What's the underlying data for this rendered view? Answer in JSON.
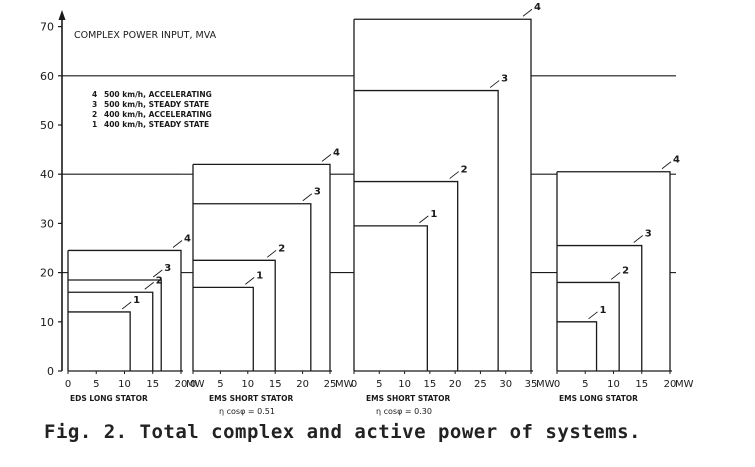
{
  "figure": {
    "caption": "Fig. 2.  Total complex and active power of systems."
  },
  "chart_data": {
    "type": "bar",
    "title": "COMPLEX POWER INPUT, MVA",
    "ylabel": "",
    "ylim": [
      0,
      75
    ],
    "yticks": [
      0,
      10,
      20,
      30,
      40,
      50,
      60,
      70
    ],
    "reference_lines": [
      20,
      40,
      60
    ],
    "legend": {
      "placement": "top-left",
      "entries": [
        {
          "id": "4",
          "label": "500 km/h, ACCELERATING"
        },
        {
          "id": "3",
          "label": "500 km/h, STEADY STATE"
        },
        {
          "id": "2",
          "label": "400 km/h, ACCELERATING"
        },
        {
          "id": "1",
          "label": "400 km/h, STEADY STATE"
        }
      ]
    },
    "groups": [
      {
        "system": "EDS LONG STATOR",
        "subnote": "",
        "x_ticks": [
          "0",
          "5",
          "10",
          "15",
          "20"
        ],
        "x_unit": "MW",
        "x_max": 20,
        "series": [
          {
            "id": "1",
            "active_mw": 11,
            "complex_mva": 12
          },
          {
            "id": "2",
            "active_mw": 15,
            "complex_mva": 16
          },
          {
            "id": "3",
            "active_mw": 16.5,
            "complex_mva": 18.5
          },
          {
            "id": "4",
            "active_mw": 20,
            "complex_mva": 24.5
          }
        ]
      },
      {
        "system": "EMS SHORT STATOR",
        "subnote": "η cosφ = 0.51",
        "x_ticks": [
          "0",
          "5",
          "10",
          "15",
          "20",
          "25"
        ],
        "x_unit": "MW",
        "x_max": 25,
        "series": [
          {
            "id": "1",
            "active_mw": 11,
            "complex_mva": 17
          },
          {
            "id": "2",
            "active_mw": 15,
            "complex_mva": 22.5
          },
          {
            "id": "3",
            "active_mw": 21.5,
            "complex_mva": 34
          },
          {
            "id": "4",
            "active_mw": 25,
            "complex_mva": 42
          }
        ]
      },
      {
        "system": "EMS SHORT STATOR",
        "subnote": "η cosφ = 0.30",
        "x_ticks": [
          "0",
          "5",
          "10",
          "15",
          "20",
          "25",
          "30",
          "35"
        ],
        "x_unit": "MW",
        "x_max": 35,
        "series": [
          {
            "id": "1",
            "active_mw": 14.5,
            "complex_mva": 29.5
          },
          {
            "id": "2",
            "active_mw": 20.5,
            "complex_mva": 38.5
          },
          {
            "id": "3",
            "active_mw": 28.5,
            "complex_mva": 57
          },
          {
            "id": "4",
            "active_mw": 35,
            "complex_mva": 71.5
          }
        ]
      },
      {
        "system": "EMS LONG STATOR",
        "subnote": "",
        "x_ticks": [
          "0",
          "5",
          "10",
          "15",
          "20"
        ],
        "x_unit": "MW",
        "x_max": 20,
        "series": [
          {
            "id": "1",
            "active_mw": 7,
            "complex_mva": 10
          },
          {
            "id": "2",
            "active_mw": 11,
            "complex_mva": 18
          },
          {
            "id": "3",
            "active_mw": 15,
            "complex_mva": 25.5
          },
          {
            "id": "4",
            "active_mw": 20,
            "complex_mva": 40.5
          }
        ]
      }
    ]
  }
}
